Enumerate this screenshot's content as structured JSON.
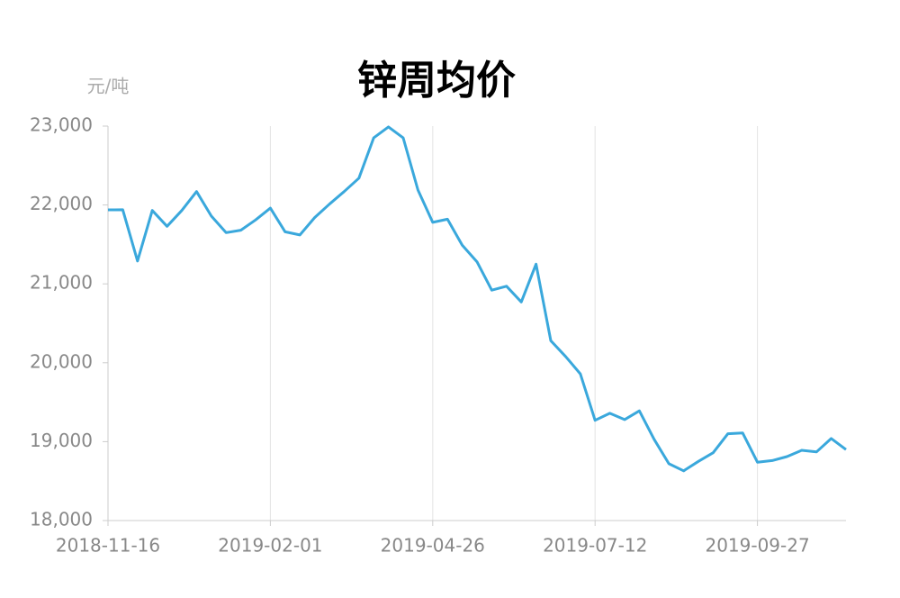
{
  "chart_data": {
    "type": "line",
    "title": "锌周均价",
    "y_label": "元/吨",
    "categories": [
      "2018-11-16",
      null,
      null,
      null,
      null,
      null,
      null,
      null,
      null,
      null,
      null,
      "2019-02-01",
      null,
      null,
      null,
      null,
      null,
      null,
      null,
      null,
      null,
      null,
      "2019-04-26",
      null,
      null,
      null,
      null,
      null,
      null,
      null,
      null,
      null,
      null,
      "2019-07-12",
      null,
      null,
      null,
      null,
      null,
      null,
      null,
      null,
      null,
      null,
      "2019-09-27",
      null,
      null,
      null,
      null,
      null,
      null
    ],
    "series": [
      {
        "name": "锌周均价",
        "color": "#3aa8dc",
        "values": [
          21938,
          21940,
          21290,
          21930,
          21730,
          21930,
          22170,
          21860,
          21650,
          21680,
          21810,
          21960,
          21660,
          21620,
          21840,
          22010,
          22170,
          22340,
          22850,
          22990,
          22850,
          22190,
          21780,
          21820,
          21490,
          21280,
          20920,
          20970,
          20770,
          21250,
          20280,
          20080,
          19860,
          19270,
          19360,
          19280,
          19390,
          19030,
          18720,
          18630,
          18750,
          18860,
          19100,
          19110,
          18740,
          18760,
          18810,
          18890,
          18870,
          19040,
          18900
        ]
      }
    ],
    "ylim": [
      18000,
      23000
    ],
    "yticks": [
      {
        "value": 18000,
        "label": "18,000"
      },
      {
        "value": 19000,
        "label": "19,000"
      },
      {
        "value": 20000,
        "label": "20,000"
      },
      {
        "value": 21000,
        "label": "21,000"
      },
      {
        "value": 22000,
        "label": "22,000"
      },
      {
        "value": 23000,
        "label": "23,000"
      }
    ],
    "grid": true
  }
}
